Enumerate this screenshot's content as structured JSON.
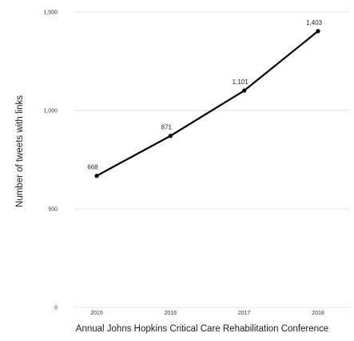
{
  "chart_data": {
    "type": "line",
    "title": "",
    "xlabel": "Annual Johns Hopkins Critical Care Rehabilitation Conference",
    "ylabel": "Number of tweets with links",
    "x": [
      "2015",
      "2016",
      "2017",
      "2018"
    ],
    "y_ticks": [
      "0",
      "500",
      "1,000",
      "1,500"
    ],
    "ylim": [
      0,
      1500
    ],
    "grid": true,
    "legend": "none",
    "series": [
      {
        "values": [
          668,
          871,
          1101,
          1403
        ],
        "value_labels": [
          "668",
          "871",
          "1,101",
          "1,403"
        ],
        "color": "#000000"
      }
    ]
  }
}
